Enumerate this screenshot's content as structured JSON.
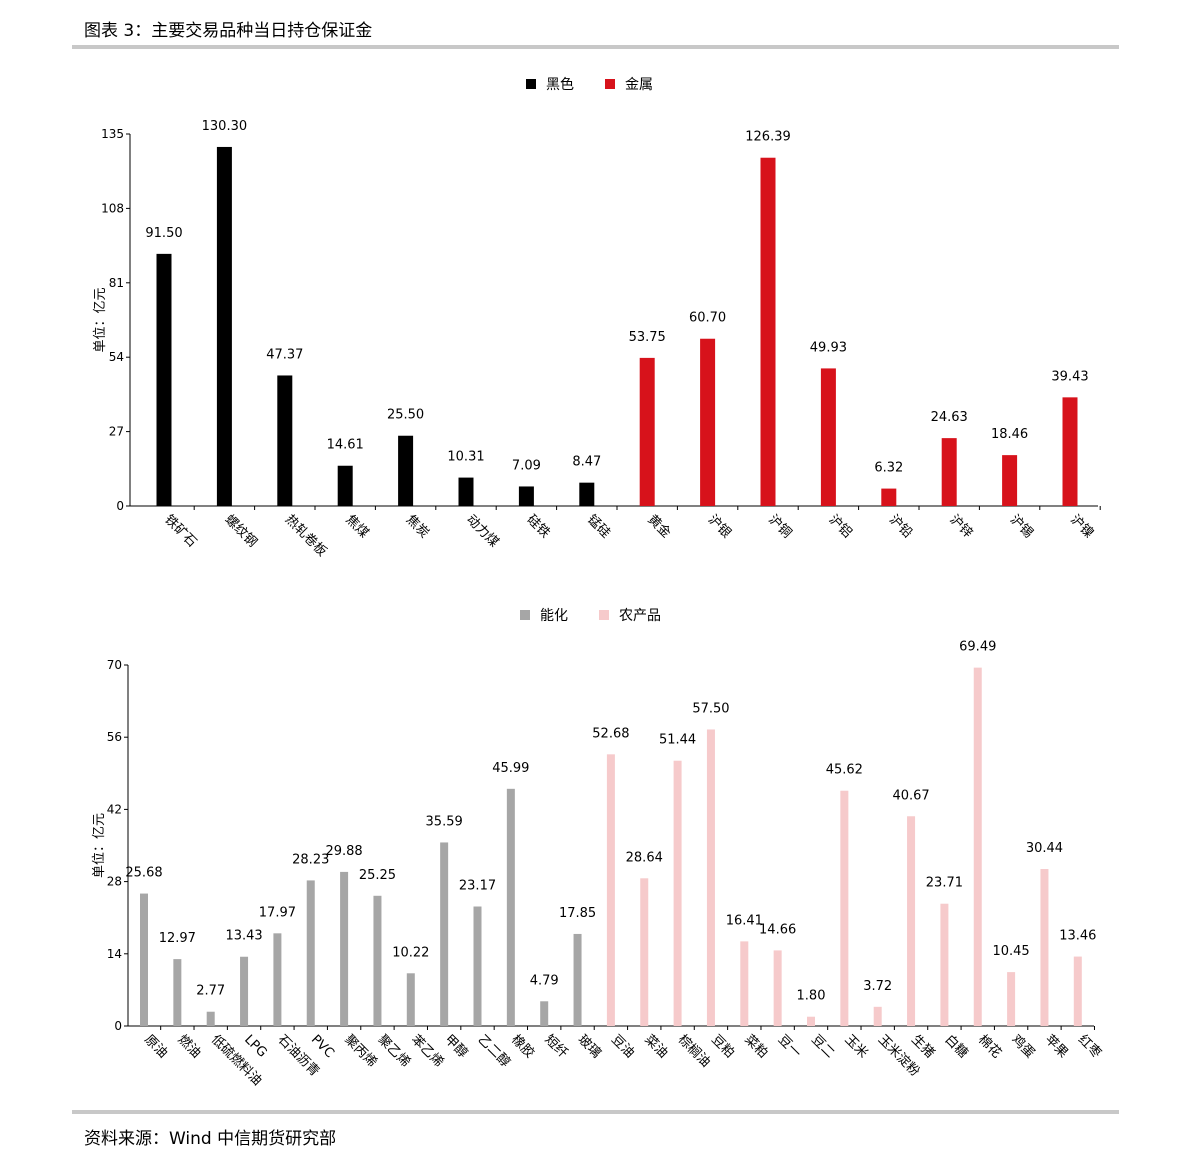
{
  "title": "图表 3：主要交易品种当日持仓保证金",
  "source": "资料来源：Wind 中信期货研究部",
  "chart_data": [
    {
      "type": "bar",
      "ylabel": "单位：亿元",
      "ylim": [
        0,
        135
      ],
      "yticks": [
        "0",
        "27",
        "54",
        "81",
        "108",
        "135"
      ],
      "legend_position": "top-center",
      "legend": [
        {
          "name": "黑色",
          "color": "#000000"
        },
        {
          "name": "金属",
          "color": "#d7121b"
        }
      ],
      "categories": [
        "铁矿石",
        "螺纹钢",
        "热轧卷板",
        "焦煤",
        "焦炭",
        "动力煤",
        "硅铁",
        "锰硅",
        "黄金",
        "沪银",
        "沪铜",
        "沪铝",
        "沪铅",
        "沪锌",
        "沪锡",
        "沪镍"
      ],
      "values": [
        91.5,
        130.3,
        47.37,
        14.61,
        25.5,
        10.31,
        7.09,
        8.47,
        53.75,
        60.7,
        126.39,
        49.93,
        6.32,
        24.63,
        18.46,
        39.43
      ],
      "labels": [
        "91.50",
        "130.30",
        "47.37",
        "14.61",
        "25.50",
        "10.31",
        "7.09",
        "8.47",
        "53.75",
        "60.70",
        "126.39",
        "49.93",
        "6.32",
        "24.63",
        "18.46",
        "39.43"
      ],
      "groups": [
        0,
        0,
        0,
        0,
        0,
        0,
        0,
        0,
        1,
        1,
        1,
        1,
        1,
        1,
        1,
        1
      ]
    },
    {
      "type": "bar",
      "ylabel": "单位：亿元",
      "ylim": [
        0,
        70
      ],
      "yticks": [
        "0",
        "14",
        "28",
        "42",
        "56",
        "70"
      ],
      "legend_position": "top-center",
      "legend": [
        {
          "name": "能化",
          "color": "#a6a6a6"
        },
        {
          "name": "农产品",
          "color": "#f6cacb"
        }
      ],
      "categories": [
        "原油",
        "燃油",
        "低硫燃料油",
        "LPG",
        "石油沥青",
        "PVC",
        "聚丙烯",
        "聚乙烯",
        "苯乙烯",
        "甲醇",
        "乙二醇",
        "橡胶",
        "短纤",
        "玻璃",
        "豆油",
        "菜油",
        "棕榈油",
        "豆粕",
        "菜粕",
        "豆一",
        "豆二",
        "玉米",
        "玉米淀粉",
        "生猪",
        "白糖",
        "棉花",
        "鸡蛋",
        "苹果",
        "红枣"
      ],
      "values": [
        25.68,
        12.97,
        2.77,
        13.43,
        17.97,
        28.23,
        29.88,
        25.25,
        10.22,
        35.59,
        23.17,
        45.99,
        4.79,
        17.85,
        52.68,
        28.64,
        51.44,
        57.5,
        16.41,
        14.66,
        1.8,
        45.62,
        3.72,
        40.67,
        23.71,
        69.49,
        10.45,
        30.44,
        13.46
      ],
      "labels": [
        "25.68",
        "12.97",
        "2.77",
        "13.43",
        "17.97",
        "28.23",
        "29.88",
        "25.25",
        "10.22",
        "35.59",
        "23.17",
        "45.99",
        "4.79",
        "17.85",
        "52.68",
        "28.64",
        "51.44",
        "57.50",
        "16.41",
        "14.66",
        "1.80",
        "45.62",
        "3.72",
        "40.67",
        "23.71",
        "69.49",
        "10.45",
        "30.44",
        "13.46"
      ],
      "groups": [
        0,
        0,
        0,
        0,
        0,
        0,
        0,
        0,
        0,
        0,
        0,
        0,
        0,
        0,
        1,
        1,
        1,
        1,
        1,
        1,
        1,
        1,
        1,
        1,
        1,
        1,
        1,
        1,
        1
      ]
    }
  ]
}
